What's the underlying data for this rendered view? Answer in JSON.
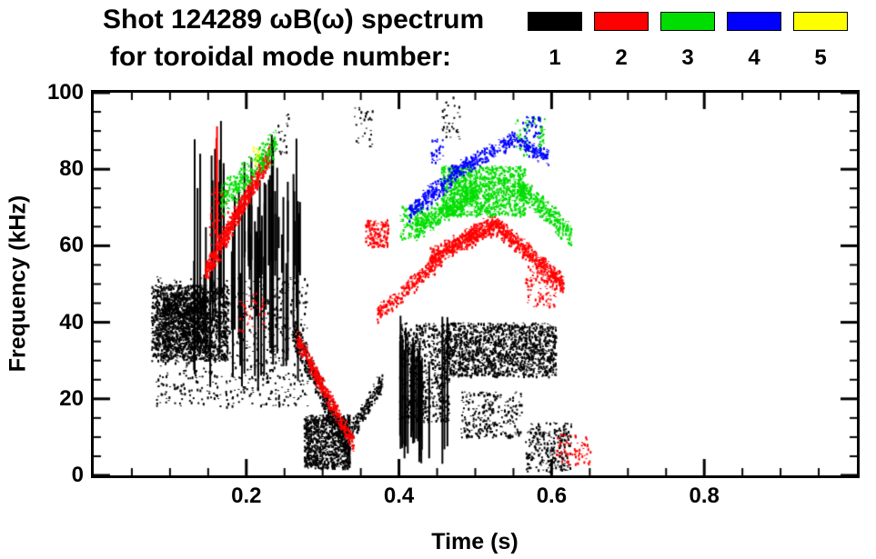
{
  "chart_data": {
    "type": "scatter",
    "title": "Shot 124289 ωB(ω) spectrum",
    "subtitle": "for toroidal mode number:",
    "xlabel": "Time (s)",
    "ylabel": "Frequency (kHz)",
    "xlim": [
      0.0,
      1.0
    ],
    "ylim": [
      0,
      100
    ],
    "xticks": [
      0.2,
      0.4,
      0.6,
      0.8
    ],
    "xtick_labels": [
      "0.2",
      "0.4",
      "0.6",
      "0.8"
    ],
    "xminor_step": 0.05,
    "yticks": [
      0,
      20,
      40,
      60,
      80,
      100
    ],
    "ytick_labels": [
      "0",
      "20",
      "40",
      "60",
      "80",
      "100"
    ],
    "yminor_step": 5,
    "grid": false,
    "legend_position": "top-right",
    "legend": [
      {
        "label": "1",
        "color": "#000000"
      },
      {
        "label": "2",
        "color": "#ff0000"
      },
      {
        "label": "3",
        "color": "#00dd00"
      },
      {
        "label": "4",
        "color": "#0000ff"
      },
      {
        "label": "5",
        "color": "#ffff00"
      }
    ],
    "clusters": [
      {
        "mode": 1,
        "shape": "blob",
        "t": [
          0.075,
          0.175
        ],
        "f": [
          30,
          50
        ],
        "n": 1500
      },
      {
        "mode": 1,
        "shape": "blob",
        "t": [
          0.09,
          0.145
        ],
        "f": [
          33,
          48
        ],
        "n": 700
      },
      {
        "mode": 1,
        "shape": "blob",
        "t": [
          0.08,
          0.28
        ],
        "f": [
          18,
          52
        ],
        "n": 800
      },
      {
        "mode": 1,
        "shape": "vlines",
        "t": [
          0.13,
          0.27
        ],
        "fbase": [
          22,
          45
        ],
        "ftop": [
          50,
          92
        ],
        "count": 40,
        "w": 2
      },
      {
        "mode": 1,
        "shape": "vlines",
        "t": [
          0.195,
          0.27
        ],
        "fbase": [
          50,
          60
        ],
        "ftop": [
          62,
          78
        ],
        "count": 22,
        "w": 2
      },
      {
        "mode": 1,
        "shape": "vlines",
        "t": [
          0.15,
          0.17
        ],
        "fbase": [
          45,
          55
        ],
        "ftop": [
          80,
          96
        ],
        "count": 3,
        "w": 2
      },
      {
        "mode": 1,
        "shape": "chirp",
        "t": [
          0.26,
          0.335
        ],
        "f0": 38,
        "f1": 6,
        "w": 9,
        "n": 500
      },
      {
        "mode": 1,
        "shape": "blob",
        "t": [
          0.275,
          0.335
        ],
        "f": [
          2,
          16
        ],
        "n": 900
      },
      {
        "mode": 1,
        "shape": "chirp",
        "t": [
          0.325,
          0.378
        ],
        "f0": 8,
        "f1": 25,
        "w": 7,
        "n": 220
      },
      {
        "mode": 1,
        "shape": "vlines",
        "t": [
          0.398,
          0.465
        ],
        "fbase": [
          3,
          12
        ],
        "ftop": [
          28,
          42
        ],
        "count": 22,
        "w": 2
      },
      {
        "mode": 1,
        "shape": "blob",
        "t": [
          0.4,
          0.465
        ],
        "f": [
          14,
          40
        ],
        "n": 700
      },
      {
        "mode": 1,
        "shape": "blob",
        "t": [
          0.46,
          0.605
        ],
        "f": [
          26,
          40
        ],
        "n": 1500
      },
      {
        "mode": 1,
        "shape": "blob",
        "t": [
          0.48,
          0.56
        ],
        "f": [
          10,
          22
        ],
        "n": 260
      },
      {
        "mode": 1,
        "shape": "blob",
        "t": [
          0.565,
          0.625
        ],
        "f": [
          1,
          14
        ],
        "n": 260
      },
      {
        "mode": 1,
        "shape": "blob",
        "t": [
          0.34,
          0.365
        ],
        "f": [
          86,
          97
        ],
        "n": 30
      },
      {
        "mode": 1,
        "shape": "blob",
        "t": [
          0.455,
          0.48
        ],
        "f": [
          88,
          99
        ],
        "n": 35
      },
      {
        "mode": 1,
        "shape": "blob",
        "t": [
          0.24,
          0.255
        ],
        "f": [
          84,
          95
        ],
        "n": 18
      },
      {
        "mode": 2,
        "shape": "chirp",
        "t": [
          0.145,
          0.23
        ],
        "f0": 53,
        "f1": 84,
        "w": 7,
        "n": 750
      },
      {
        "mode": 2,
        "shape": "blob",
        "t": [
          0.15,
          0.175
        ],
        "f": [
          55,
          75
        ],
        "n": 70
      },
      {
        "mode": 2,
        "shape": "vlines",
        "t": [
          0.158,
          0.17
        ],
        "fbase": [
          55,
          62
        ],
        "ftop": [
          86,
          95
        ],
        "count": 2,
        "w": 2
      },
      {
        "mode": 2,
        "shape": "chirp",
        "t": [
          0.265,
          0.34
        ],
        "f0": 36,
        "f1": 8,
        "w": 6,
        "n": 450
      },
      {
        "mode": 2,
        "shape": "blob",
        "t": [
          0.355,
          0.385
        ],
        "f": [
          60,
          67
        ],
        "n": 150
      },
      {
        "mode": 2,
        "shape": "chirp",
        "t": [
          0.37,
          0.455
        ],
        "f0": 42,
        "f1": 57,
        "w": 6,
        "n": 280
      },
      {
        "mode": 2,
        "shape": "chirp",
        "t": [
          0.44,
          0.525
        ],
        "f0": 57,
        "f1": 66,
        "w": 6,
        "n": 550
      },
      {
        "mode": 2,
        "shape": "chirp",
        "t": [
          0.525,
          0.615
        ],
        "f0": 66,
        "f1": 50,
        "w": 6,
        "n": 500
      },
      {
        "mode": 2,
        "shape": "blob",
        "t": [
          0.565,
          0.605
        ],
        "f": [
          44,
          55
        ],
        "n": 110
      },
      {
        "mode": 2,
        "shape": "blob",
        "t": [
          0.605,
          0.65
        ],
        "f": [
          3,
          11
        ],
        "n": 70
      },
      {
        "mode": 2,
        "shape": "blob",
        "t": [
          0.19,
          0.225
        ],
        "f": [
          38,
          48
        ],
        "n": 40
      },
      {
        "mode": 3,
        "shape": "chirp",
        "t": [
          0.165,
          0.24
        ],
        "f0": 72,
        "f1": 87,
        "w": 10,
        "n": 300
      },
      {
        "mode": 3,
        "shape": "blob",
        "t": [
          0.4,
          0.435
        ],
        "f": [
          62,
          71
        ],
        "n": 120
      },
      {
        "mode": 3,
        "shape": "chirp",
        "t": [
          0.42,
          0.5
        ],
        "f0": 65,
        "f1": 75,
        "w": 8,
        "n": 450
      },
      {
        "mode": 3,
        "shape": "blob",
        "t": [
          0.455,
          0.565
        ],
        "f": [
          68,
          81
        ],
        "n": 1100
      },
      {
        "mode": 3,
        "shape": "chirp",
        "t": [
          0.555,
          0.625
        ],
        "f0": 76,
        "f1": 63,
        "w": 7,
        "n": 320
      },
      {
        "mode": 3,
        "shape": "blob",
        "t": [
          0.55,
          0.59
        ],
        "f": [
          84,
          94
        ],
        "n": 70
      },
      {
        "mode": 4,
        "shape": "chirp",
        "t": [
          0.412,
          0.468
        ],
        "f0": 69,
        "f1": 78,
        "w": 6,
        "n": 220
      },
      {
        "mode": 4,
        "shape": "chirp",
        "t": [
          0.468,
          0.55
        ],
        "f0": 79,
        "f1": 88,
        "w": 5,
        "n": 260
      },
      {
        "mode": 4,
        "shape": "chirp",
        "t": [
          0.55,
          0.595
        ],
        "f0": 88,
        "f1": 83,
        "w": 5,
        "n": 130
      },
      {
        "mode": 4,
        "shape": "blob",
        "t": [
          0.44,
          0.458
        ],
        "f": [
          82,
          88
        ],
        "n": 30
      },
      {
        "mode": 4,
        "shape": "blob",
        "t": [
          0.56,
          0.585
        ],
        "f": [
          88,
          94
        ],
        "n": 40
      },
      {
        "mode": 5,
        "shape": "blob",
        "t": [
          0.207,
          0.219
        ],
        "f": [
          81,
          86
        ],
        "n": 14
      }
    ]
  }
}
